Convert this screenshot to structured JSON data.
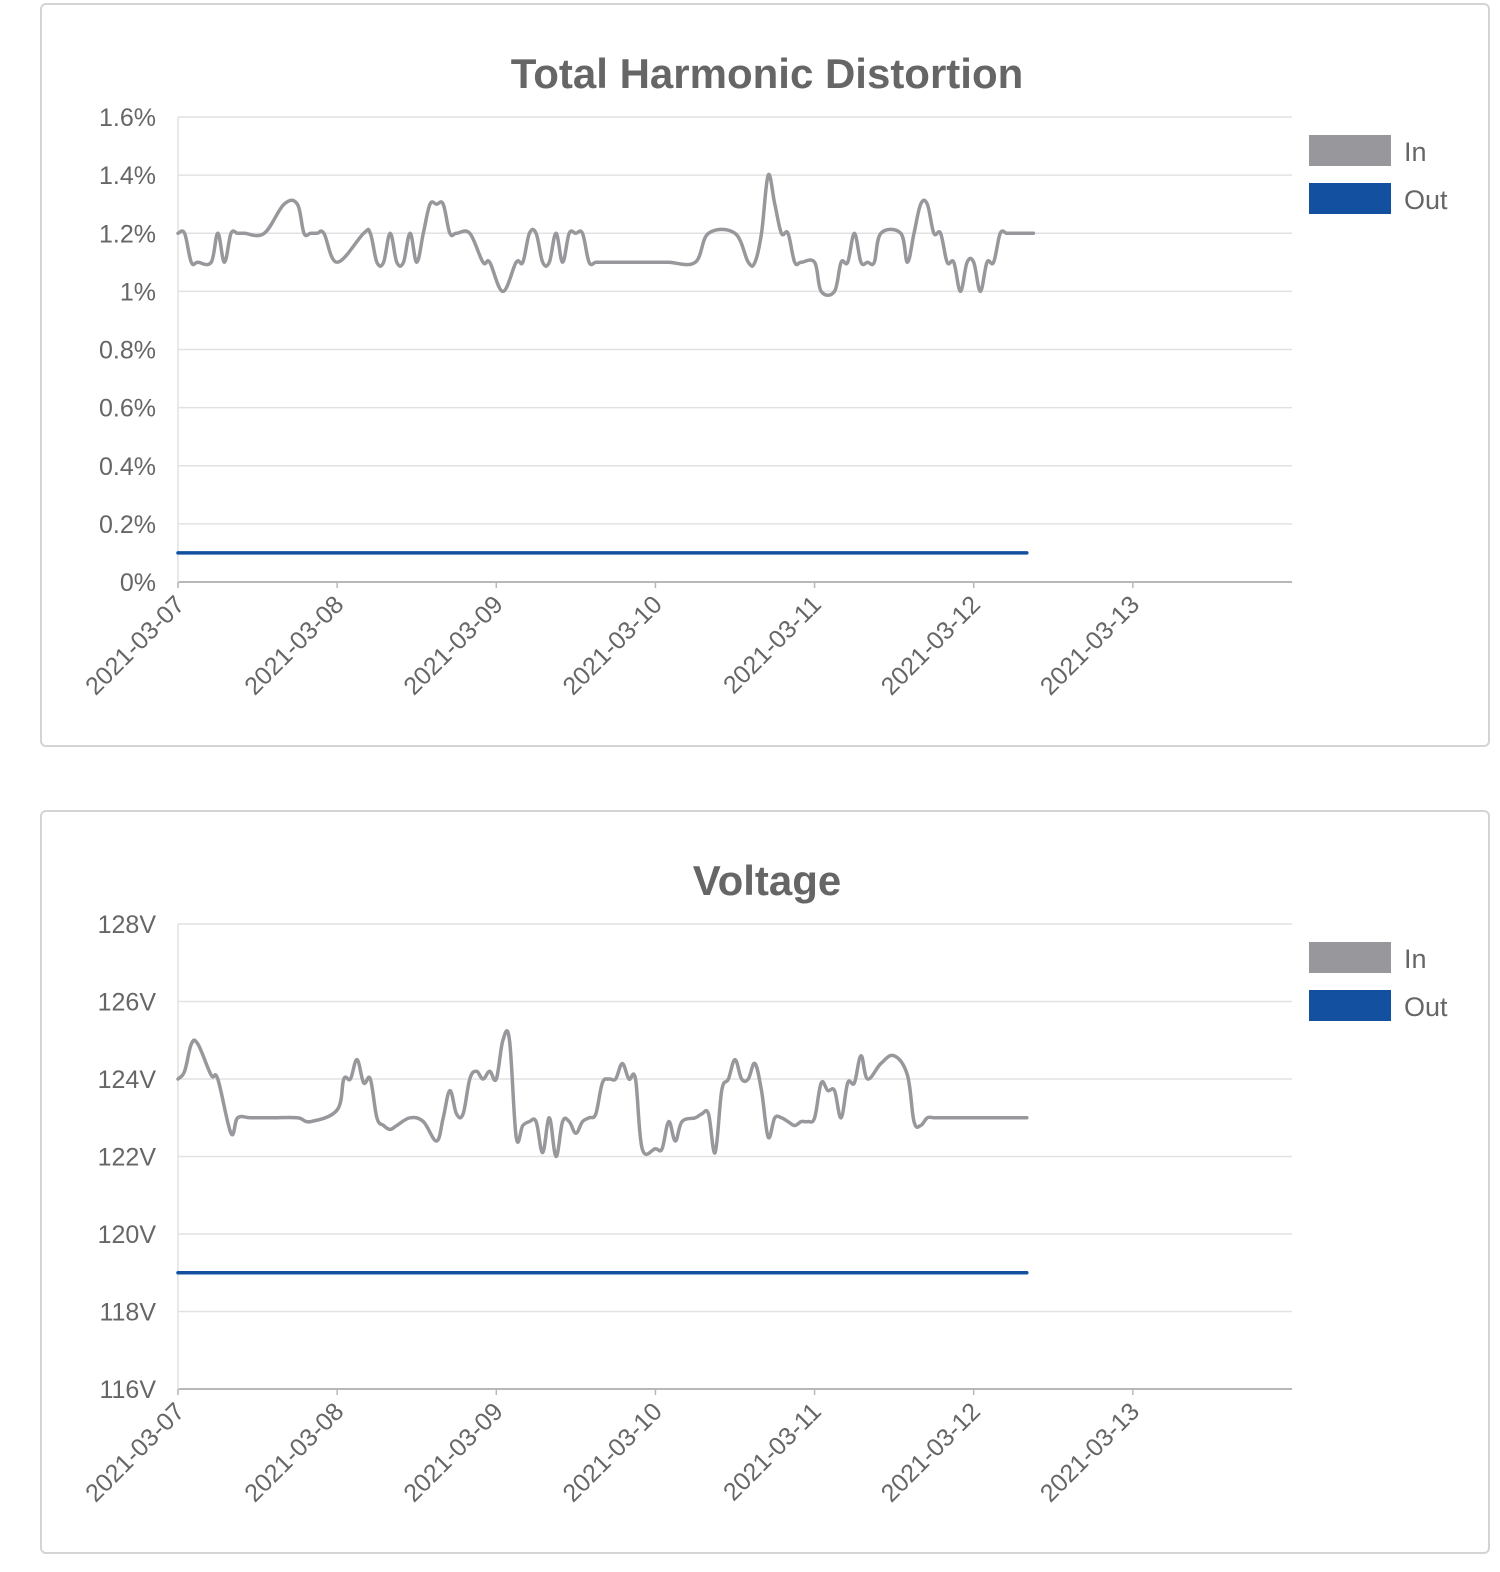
{
  "colors": {
    "in": "#98989c",
    "out": "#1450a0",
    "grid": "#e2e2e2",
    "axis": "#b8b8b8",
    "text": "#666666"
  },
  "charts": [
    {
      "id": "thd",
      "chart_data": {
        "type": "line",
        "title": "Total Harmonic Distortion",
        "xlabel": "",
        "ylabel": "",
        "y_unit": "%",
        "ylim": [
          0,
          1.6
        ],
        "y_ticks": [
          0,
          0.2,
          0.4,
          0.6,
          0.8,
          1,
          1.2,
          1.4,
          1.6
        ],
        "y_tick_labels": [
          "0%",
          "0.2%",
          "0.4%",
          "0.6%",
          "0.8%",
          "1%",
          "1.2%",
          "1.4%",
          "1.6%"
        ],
        "xlim": [
          "2021-03-07",
          "2021-03-14"
        ],
        "x_tick_labels": [
          "2021-03-07",
          "2021-03-08",
          "2021-03-09",
          "2021-03-10",
          "2021-03-11",
          "2021-03-12",
          "2021-03-13"
        ],
        "grid": true,
        "legend_position": "right",
        "series": [
          {
            "name": "In",
            "color": "#98989c",
            "x": [
              "2021-03-07 00:00",
              "2021-03-07 01:00",
              "2021-03-07 02:00",
              "2021-03-07 03:00",
              "2021-03-07 05:00",
              "2021-03-07 06:00",
              "2021-03-07 07:00",
              "2021-03-07 08:00",
              "2021-03-07 09:00",
              "2021-03-07 10:00",
              "2021-03-07 13:00",
              "2021-03-07 16:00",
              "2021-03-07 18:00",
              "2021-03-07 19:00",
              "2021-03-07 20:00",
              "2021-03-07 21:00",
              "2021-03-07 22:00",
              "2021-03-08 00:00",
              "2021-03-08 04:00",
              "2021-03-08 05:00",
              "2021-03-08 06:00",
              "2021-03-08 07:00",
              "2021-03-08 08:00",
              "2021-03-08 09:00",
              "2021-03-08 10:00",
              "2021-03-08 11:00",
              "2021-03-08 12:00",
              "2021-03-08 13:00",
              "2021-03-08 14:00",
              "2021-03-08 15:00",
              "2021-03-08 16:00",
              "2021-03-08 17:00",
              "2021-03-08 18:00",
              "2021-03-08 20:00",
              "2021-03-08 22:00",
              "2021-03-08 23:00",
              "2021-03-09 01:00",
              "2021-03-09 03:00",
              "2021-03-09 04:00",
              "2021-03-09 05:00",
              "2021-03-09 06:00",
              "2021-03-09 07:00",
              "2021-03-09 08:00",
              "2021-03-09 09:00",
              "2021-03-09 10:00",
              "2021-03-09 11:00",
              "2021-03-09 12:00",
              "2021-03-09 13:00",
              "2021-03-09 14:00",
              "2021-03-09 15:00",
              "2021-03-09 16:00",
              "2021-03-09 17:00",
              "2021-03-09 18:00",
              "2021-03-09 20:00",
              "2021-03-10 00:00",
              "2021-03-10 02:00",
              "2021-03-10 06:00",
              "2021-03-10 08:00",
              "2021-03-10 12:00",
              "2021-03-10 14:00",
              "2021-03-10 15:00",
              "2021-03-10 16:00",
              "2021-03-10 17:00",
              "2021-03-10 18:00",
              "2021-03-10 19:00",
              "2021-03-10 20:00",
              "2021-03-10 21:00",
              "2021-03-10 22:00",
              "2021-03-11 00:00",
              "2021-03-11 01:00",
              "2021-03-11 03:00",
              "2021-03-11 04:00",
              "2021-03-11 05:00",
              "2021-03-11 06:00",
              "2021-03-11 07:00",
              "2021-03-11 08:00",
              "2021-03-11 09:00",
              "2021-03-11 10:00",
              "2021-03-11 13:00",
              "2021-03-11 14:00",
              "2021-03-11 15:00",
              "2021-03-11 16:00",
              "2021-03-11 17:00",
              "2021-03-11 18:00",
              "2021-03-11 19:00",
              "2021-03-11 20:00",
              "2021-03-11 21:00",
              "2021-03-11 22:00",
              "2021-03-11 23:00",
              "2021-03-12 00:00",
              "2021-03-12 01:00",
              "2021-03-12 02:00",
              "2021-03-12 03:00",
              "2021-03-12 04:00",
              "2021-03-12 05:00",
              "2021-03-12 06:00",
              "2021-03-12 07:00",
              "2021-03-12 08:00",
              "2021-03-12 09:00"
            ],
            "values": [
              1.2,
              1.2,
              1.1,
              1.1,
              1.1,
              1.2,
              1.1,
              1.2,
              1.2,
              1.2,
              1.2,
              1.3,
              1.3,
              1.2,
              1.2,
              1.2,
              1.2,
              1.1,
              1.2,
              1.2,
              1.1,
              1.1,
              1.2,
              1.1,
              1.1,
              1.2,
              1.1,
              1.2,
              1.3,
              1.3,
              1.3,
              1.2,
              1.2,
              1.2,
              1.1,
              1.1,
              1.0,
              1.1,
              1.1,
              1.2,
              1.2,
              1.1,
              1.1,
              1.2,
              1.1,
              1.2,
              1.2,
              1.2,
              1.1,
              1.1,
              1.1,
              1.1,
              1.1,
              1.1,
              1.1,
              1.1,
              1.1,
              1.2,
              1.2,
              1.1,
              1.1,
              1.2,
              1.4,
              1.3,
              1.2,
              1.2,
              1.1,
              1.1,
              1.1,
              1.0,
              1.0,
              1.1,
              1.1,
              1.2,
              1.1,
              1.1,
              1.1,
              1.2,
              1.2,
              1.1,
              1.2,
              1.3,
              1.3,
              1.2,
              1.2,
              1.1,
              1.1,
              1.0,
              1.1,
              1.1,
              1.0,
              1.1,
              1.1,
              1.2,
              1.2,
              1.2,
              1.2,
              1.2,
              1.2
            ]
          },
          {
            "name": "Out",
            "color": "#1450a0",
            "x": [
              "2021-03-07 00:00",
              "2021-03-12 08:00"
            ],
            "values": [
              0.1,
              0.1
            ]
          }
        ]
      }
    },
    {
      "id": "voltage",
      "chart_data": {
        "type": "line",
        "title": "Voltage",
        "xlabel": "",
        "ylabel": "",
        "y_unit": "V",
        "ylim": [
          116,
          128
        ],
        "y_ticks": [
          116,
          118,
          120,
          122,
          124,
          126,
          128
        ],
        "y_tick_labels": [
          "116V",
          "118V",
          "120V",
          "122V",
          "124V",
          "126V",
          "128V"
        ],
        "xlim": [
          "2021-03-07",
          "2021-03-14"
        ],
        "x_tick_labels": [
          "2021-03-07",
          "2021-03-08",
          "2021-03-09",
          "2021-03-10",
          "2021-03-11",
          "2021-03-12",
          "2021-03-13"
        ],
        "grid": true,
        "legend_position": "right",
        "series": [
          {
            "name": "In",
            "color": "#98989c",
            "x": [
              "2021-03-07 00:00",
              "2021-03-07 01:00",
              "2021-03-07 02:00",
              "2021-03-07 03:00",
              "2021-03-07 05:00",
              "2021-03-07 06:00",
              "2021-03-07 08:00",
              "2021-03-07 09:00",
              "2021-03-07 11:00",
              "2021-03-07 14:00",
              "2021-03-07 18:00",
              "2021-03-07 20:00",
              "2021-03-08 00:00",
              "2021-03-08 01:00",
              "2021-03-08 02:00",
              "2021-03-08 03:00",
              "2021-03-08 04:00",
              "2021-03-08 05:00",
              "2021-03-08 06:00",
              "2021-03-08 07:00",
              "2021-03-08 08:00",
              "2021-03-08 09:00",
              "2021-03-08 11:00",
              "2021-03-08 13:00",
              "2021-03-08 15:00",
              "2021-03-08 16:00",
              "2021-03-08 17:00",
              "2021-03-08 18:00",
              "2021-03-08 19:00",
              "2021-03-08 20:00",
              "2021-03-08 21:00",
              "2021-03-08 22:00",
              "2021-03-08 23:00",
              "2021-03-09 00:00",
              "2021-03-09 01:00",
              "2021-03-09 02:00",
              "2021-03-09 03:00",
              "2021-03-09 04:00",
              "2021-03-09 05:00",
              "2021-03-09 06:00",
              "2021-03-09 07:00",
              "2021-03-09 08:00",
              "2021-03-09 09:00",
              "2021-03-09 10:00",
              "2021-03-09 11:00",
              "2021-03-09 12:00",
              "2021-03-09 13:00",
              "2021-03-09 14:00",
              "2021-03-09 15:00",
              "2021-03-09 16:00",
              "2021-03-09 17:00",
              "2021-03-09 18:00",
              "2021-03-09 19:00",
              "2021-03-09 20:00",
              "2021-03-09 21:00",
              "2021-03-09 22:00",
              "2021-03-10 00:00",
              "2021-03-10 01:00",
              "2021-03-10 02:00",
              "2021-03-10 03:00",
              "2021-03-10 04:00",
              "2021-03-10 06:00",
              "2021-03-10 07:00",
              "2021-03-10 08:00",
              "2021-03-10 09:00",
              "2021-03-10 10:00",
              "2021-03-10 11:00",
              "2021-03-10 12:00",
              "2021-03-10 13:00",
              "2021-03-10 14:00",
              "2021-03-10 15:00",
              "2021-03-10 16:00",
              "2021-03-10 17:00",
              "2021-03-10 18:00",
              "2021-03-10 19:00",
              "2021-03-10 20:00",
              "2021-03-10 21:00",
              "2021-03-10 22:00",
              "2021-03-10 23:00",
              "2021-03-11 00:00",
              "2021-03-11 01:00",
              "2021-03-11 02:00",
              "2021-03-11 03:00",
              "2021-03-11 04:00",
              "2021-03-11 05:00",
              "2021-03-11 06:00",
              "2021-03-11 07:00",
              "2021-03-11 08:00",
              "2021-03-11 10:00",
              "2021-03-11 12:00",
              "2021-03-11 14:00",
              "2021-03-11 15:00",
              "2021-03-11 16:00",
              "2021-03-11 17:00",
              "2021-03-11 18:00",
              "2021-03-11 19:00",
              "2021-03-11 20:00",
              "2021-03-11 21:00",
              "2021-03-11 22:00",
              "2021-03-11 23:00",
              "2021-03-12 00:00",
              "2021-03-12 01:00",
              "2021-03-12 02:00",
              "2021-03-12 03:00",
              "2021-03-12 04:00",
              "2021-03-12 05:00",
              "2021-03-12 06:00",
              "2021-03-12 07:00",
              "2021-03-12 08:00"
            ],
            "values": [
              124.0,
              124.2,
              124.9,
              124.9,
              124.1,
              124.0,
              122.6,
              123.0,
              123.0,
              123.0,
              123.0,
              122.9,
              123.2,
              124.0,
              124.0,
              124.5,
              123.9,
              124.0,
              123.0,
              122.8,
              122.7,
              122.8,
              123.0,
              122.9,
              122.4,
              123.0,
              123.7,
              123.1,
              123.1,
              124.0,
              124.2,
              124.0,
              124.2,
              124.0,
              125.0,
              125.0,
              122.5,
              122.8,
              122.9,
              122.9,
              122.1,
              123.0,
              122.0,
              122.9,
              122.9,
              122.6,
              122.9,
              123.0,
              123.1,
              123.9,
              124.0,
              124.0,
              124.4,
              124.0,
              124.0,
              122.2,
              122.2,
              122.2,
              122.9,
              122.4,
              122.9,
              123.0,
              123.1,
              123.1,
              122.1,
              123.7,
              124.0,
              124.5,
              124.0,
              124.0,
              124.4,
              123.7,
              122.5,
              123.0,
              123.0,
              122.9,
              122.8,
              122.9,
              122.9,
              123.0,
              123.9,
              123.7,
              123.7,
              123.0,
              123.9,
              123.9,
              124.6,
              124.0,
              124.4,
              124.6,
              124.1,
              122.9,
              122.8,
              123.0,
              123.0,
              123.0,
              123.0,
              123.0,
              123.0,
              123.0,
              123.0,
              123.0,
              123.0,
              123.0,
              123.0,
              123.0,
              123.0,
              123.0,
              123.0
            ]
          },
          {
            "name": "Out",
            "color": "#1450a0",
            "x": [
              "2021-03-07 00:00",
              "2021-03-12 08:00"
            ],
            "values": [
              119.0,
              119.0
            ]
          }
        ]
      }
    }
  ]
}
